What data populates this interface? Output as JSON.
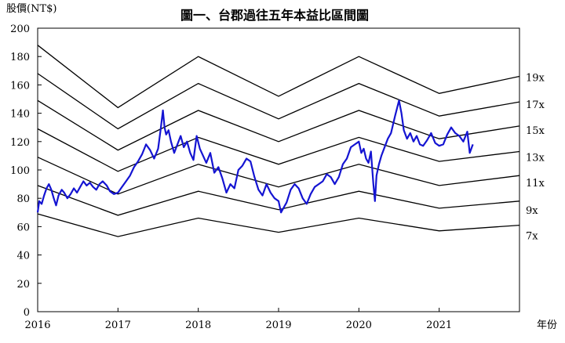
{
  "chart_data": {
    "type": "line",
    "title": "圖一、台郡過往五年本益比區間圖",
    "ylabel": "股價(NT$)",
    "xlabel": "年份",
    "xlim": [
      2016,
      2022
    ],
    "ylim": [
      0,
      200
    ],
    "x_ticks": [
      "2016",
      "2017",
      "2018",
      "2019",
      "2020",
      "2021"
    ],
    "y_ticks": [
      0,
      20,
      40,
      60,
      80,
      100,
      120,
      140,
      160,
      180,
      200
    ],
    "grid": false,
    "colors": {
      "price": "#1414d2",
      "bands": "#000000"
    },
    "pe_bands": [
      {
        "label": "19x",
        "x": [
          2016,
          2017,
          2018,
          2019,
          2020,
          2021,
          2022
        ],
        "values": [
          188,
          144,
          180,
          152,
          180,
          154,
          166
        ]
      },
      {
        "label": "17x",
        "x": [
          2016,
          2017,
          2018,
          2019,
          2020,
          2021,
          2022
        ],
        "values": [
          168,
          129,
          161,
          136,
          161,
          138,
          148
        ]
      },
      {
        "label": "15x",
        "x": [
          2016,
          2017,
          2018,
          2019,
          2020,
          2021,
          2022
        ],
        "values": [
          149,
          114,
          142,
          120,
          142,
          122,
          131
        ]
      },
      {
        "label": "13x",
        "x": [
          2016,
          2017,
          2018,
          2019,
          2020,
          2021,
          2022
        ],
        "values": [
          129,
          99,
          123,
          104,
          123,
          106,
          113
        ]
      },
      {
        "label": "11x",
        "x": [
          2016,
          2017,
          2018,
          2019,
          2020,
          2021,
          2022
        ],
        "values": [
          109,
          83,
          104,
          88,
          104,
          89,
          96
        ]
      },
      {
        "label": "9x",
        "x": [
          2016,
          2017,
          2018,
          2019,
          2020,
          2021,
          2022
        ],
        "values": [
          89,
          68,
          85,
          72,
          85,
          73,
          78
        ]
      },
      {
        "label": "7x",
        "x": [
          2016,
          2017,
          2018,
          2019,
          2020,
          2021,
          2022
        ],
        "values": [
          69,
          53,
          66,
          56,
          66,
          57,
          61
        ]
      }
    ],
    "price": {
      "x": [
        2016.0,
        2016.02,
        2016.05,
        2016.08,
        2016.11,
        2016.14,
        2016.17,
        2016.2,
        2016.23,
        2016.26,
        2016.3,
        2016.33,
        2016.37,
        2016.41,
        2016.45,
        2016.49,
        2016.53,
        2016.57,
        2016.61,
        2016.65,
        2016.69,
        2016.73,
        2016.77,
        2016.81,
        2016.86,
        2016.9,
        2016.95,
        2017.0,
        2017.05,
        2017.1,
        2017.15,
        2017.2,
        2017.25,
        2017.3,
        2017.35,
        2017.4,
        2017.45,
        2017.5,
        2017.53,
        2017.56,
        2017.58,
        2017.6,
        2017.63,
        2017.66,
        2017.7,
        2017.74,
        2017.78,
        2017.82,
        2017.86,
        2017.9,
        2017.94,
        2017.98,
        2018.02,
        2018.06,
        2018.1,
        2018.15,
        2018.2,
        2018.25,
        2018.3,
        2018.35,
        2018.4,
        2018.45,
        2018.5,
        2018.55,
        2018.6,
        2018.65,
        2018.7,
        2018.75,
        2018.8,
        2018.85,
        2018.9,
        2018.95,
        2019.0,
        2019.03,
        2019.06,
        2019.1,
        2019.15,
        2019.2,
        2019.25,
        2019.3,
        2019.35,
        2019.4,
        2019.45,
        2019.5,
        2019.55,
        2019.6,
        2019.65,
        2019.7,
        2019.75,
        2019.8,
        2019.85,
        2019.9,
        2019.95,
        2020.0,
        2020.03,
        2020.06,
        2020.09,
        2020.12,
        2020.15,
        2020.18,
        2020.2,
        2020.22,
        2020.25,
        2020.28,
        2020.32,
        2020.36,
        2020.4,
        2020.45,
        2020.5,
        2020.53,
        2020.56,
        2020.6,
        2020.64,
        2020.68,
        2020.72,
        2020.76,
        2020.8,
        2020.85,
        2020.9,
        2020.95,
        2021.0,
        2021.05,
        2021.1,
        2021.15,
        2021.2,
        2021.25,
        2021.3,
        2021.35,
        2021.38,
        2021.42
      ],
      "values": [
        70,
        78,
        76,
        82,
        87,
        90,
        86,
        80,
        75,
        82,
        86,
        84,
        80,
        83,
        87,
        84,
        88,
        92,
        89,
        91,
        88,
        86,
        90,
        92,
        89,
        85,
        83,
        84,
        88,
        92,
        96,
        102,
        106,
        111,
        118,
        114,
        108,
        115,
        128,
        142,
        130,
        125,
        128,
        120,
        112,
        118,
        124,
        116,
        120,
        112,
        107,
        124,
        115,
        110,
        105,
        112,
        98,
        102,
        94,
        84,
        90,
        87,
        100,
        103,
        108,
        106,
        95,
        86,
        82,
        90,
        84,
        80,
        78,
        70,
        73,
        77,
        86,
        90,
        87,
        80,
        76,
        83,
        88,
        90,
        92,
        97,
        95,
        90,
        95,
        104,
        108,
        116,
        118,
        120,
        112,
        115,
        108,
        105,
        113,
        90,
        78,
        96,
        104,
        110,
        116,
        122,
        126,
        138,
        149,
        140,
        128,
        122,
        126,
        120,
        124,
        118,
        117,
        121,
        126,
        119,
        117,
        118,
        125,
        130,
        126,
        124,
        120,
        127,
        112,
        118
      ]
    }
  }
}
